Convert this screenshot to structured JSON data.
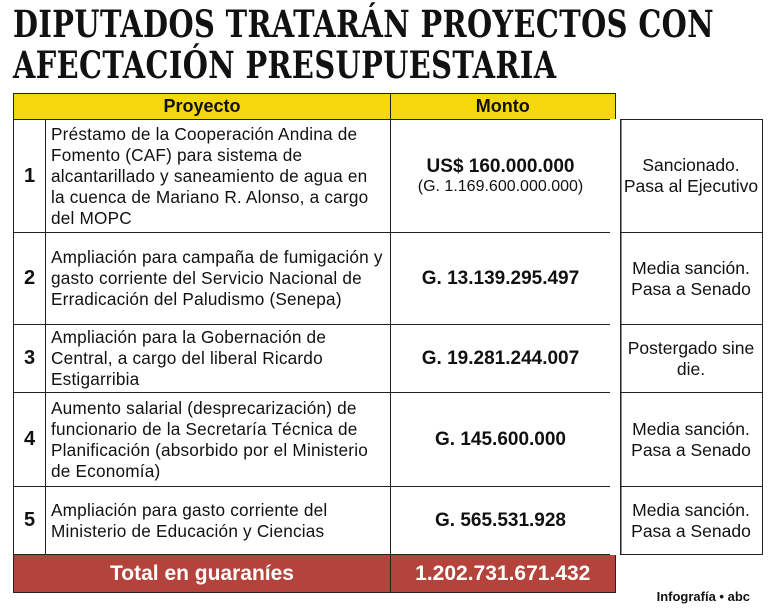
{
  "title": [
    "DIPUTADOS TRATARÁN PROYECTOS CON",
    "AFECTACIÓN PRESUPUESTARIA"
  ],
  "table": {
    "headers": [
      "Proyecto",
      "Monto"
    ],
    "rows": [
      {
        "number": "1",
        "project": "Préstamo de la Cooperación Andina de Fomento (CAF) para sistema de alcantarillado y saneamiento de agua en la cuenca de Mariano R. Alonso, a cargo del MOPC",
        "amount": "US$ 160.000.000",
        "amount_note": "(G. 1.169.600.000.000)",
        "status": "Sancionado. Pasa al Ejecutivo"
      },
      {
        "number": "2",
        "project": "Ampliación para campaña de fumigación y gasto corriente del Servicio Nacional de Erradicación del Paludismo (Senepa)",
        "amount": "G. 13.139.295.497",
        "status": "Media sanción. Pasa a Senado"
      },
      {
        "number": "3",
        "project": "Ampliación para la Gobernación de Central, a cargo del liberal Ricardo Estigarribia",
        "amount": "G. 19.281.244.007",
        "status": "Postergado sine die."
      },
      {
        "number": "4",
        "project": "Aumento salarial (desprecarización) de funcionario de la Secretaría Técnica de Planificación (absorbido por el Ministerio de Economía)",
        "amount": "G. 145.600.000",
        "status": "Media sanción. Pasa a Senado"
      },
      {
        "number": "5",
        "project": "Ampliación para gasto corriente del Ministerio de Educación y Ciencias",
        "amount": "G. 565.531.928",
        "status": "Media sanción. Pasa a Senado"
      }
    ],
    "total_label": "Total en guaraníes",
    "total_amount": "1.202.731.671.432"
  },
  "footer": "Infografía • abc"
}
